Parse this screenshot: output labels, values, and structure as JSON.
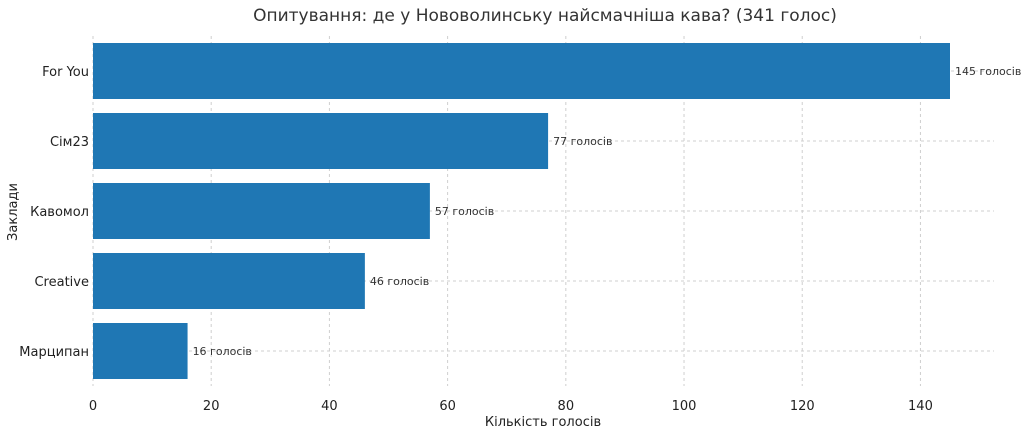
{
  "chart_data": {
    "type": "bar",
    "orientation": "horizontal",
    "title": "Опитування: де у Нововолинську найсмачніша кава? (341 голос)",
    "xlabel": "Кількість голосів",
    "ylabel": "Заклади",
    "categories": [
      "For You",
      "Сім23",
      "Кавомол",
      "Creative",
      "Марципан"
    ],
    "values": [
      145,
      77,
      57,
      46,
      16
    ],
    "data_labels": [
      "145 голосів",
      "77 голосів",
      "57 голосів",
      "46 голосів",
      "16 голосів"
    ],
    "xlim": [
      0,
      152
    ],
    "xticks": [
      0,
      20,
      40,
      60,
      80,
      100,
      120,
      140
    ],
    "grid": true,
    "legend": "none",
    "bar_color": "#1f77b4"
  }
}
